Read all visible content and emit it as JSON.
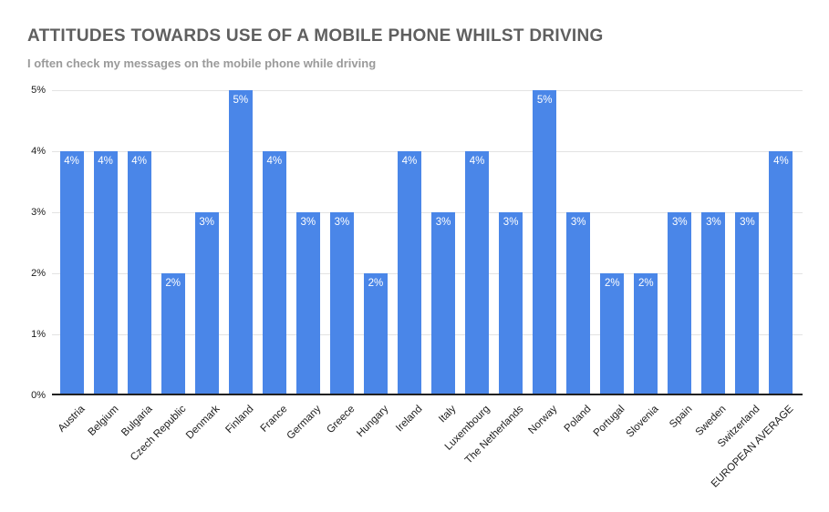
{
  "chart_data": {
    "type": "bar",
    "title": "ATTITUDES TOWARDS USE OF A MOBILE PHONE WHILST DRIVING",
    "subtitle": "I often check my messages on the mobile phone while driving",
    "categories": [
      "Austria",
      "Belgium",
      "Bulgaria",
      "Czech Republic",
      "Denmark",
      "Finland",
      "France",
      "Germany",
      "Greece",
      "Hungary",
      "Ireland",
      "Italy",
      "Luxembourg",
      "The Netherlands",
      "Norway",
      "Poland",
      "Portugal",
      "Slovenia",
      "Spain",
      "Sweden",
      "Switzerland",
      "EUROPEAN AVERAGE"
    ],
    "values": [
      4,
      4,
      4,
      2,
      3,
      5,
      4,
      3,
      3,
      2,
      4,
      3,
      4,
      3,
      5,
      3,
      2,
      2,
      3,
      3,
      3,
      4
    ],
    "data_labels": [
      "4%",
      "4%",
      "4%",
      "2%",
      "3%",
      "5%",
      "4%",
      "3%",
      "3%",
      "2%",
      "4%",
      "3%",
      "4%",
      "3%",
      "5%",
      "3%",
      "2%",
      "2%",
      "3%",
      "3%",
      "3%",
      "4%"
    ],
    "xlabel": "",
    "ylabel": "",
    "ylim": [
      0,
      5
    ],
    "yticks": [
      "0%",
      "1%",
      "2%",
      "3%",
      "4%",
      "5%"
    ],
    "grid": true,
    "legend": "none",
    "bar_color": "#4a86e8",
    "data_label_color": "#ffffff"
  }
}
